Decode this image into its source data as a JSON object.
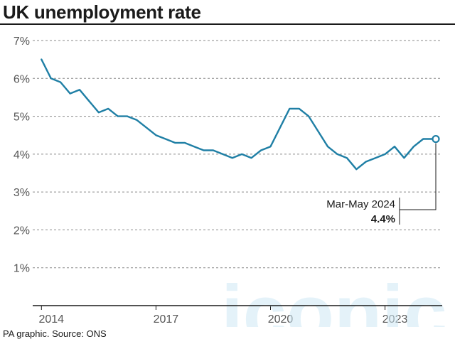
{
  "header": {
    "title": "UK unemployment rate"
  },
  "footer": {
    "source": "PA graphic. Source: ONS"
  },
  "watermark": {
    "text": "iconic"
  },
  "colors": {
    "line": "#1f7fa5",
    "axis": "#1a1a1a",
    "grid": "#8a8a8a",
    "watermark": "#cfe9f5"
  },
  "chart_data": {
    "type": "line",
    "title": "UK unemployment rate",
    "xlabel": "",
    "ylabel": "",
    "ylim": [
      0,
      7
    ],
    "xlim": [
      2013.92,
      2024.33
    ],
    "yticks": [
      1,
      2,
      3,
      4,
      5,
      6,
      7
    ],
    "ytick_labels": [
      "1%",
      "2%",
      "3%",
      "4%",
      "5%",
      "6%",
      "7%"
    ],
    "xticks": [
      2014,
      2017,
      2020,
      2023
    ],
    "xtick_labels": [
      "2014",
      "2017",
      "2020",
      "2023"
    ],
    "grid": true,
    "series": [
      {
        "x": [
          2014.0,
          2014.25,
          2014.5,
          2014.75,
          2015.0,
          2015.25,
          2015.5,
          2015.75,
          2016.0,
          2016.25,
          2016.5,
          2016.75,
          2017.0,
          2017.25,
          2017.5,
          2017.75,
          2018.0,
          2018.25,
          2018.5,
          2018.75,
          2019.0,
          2019.25,
          2019.5,
          2019.75,
          2020.0,
          2020.25,
          2020.5,
          2020.75,
          2021.0,
          2021.25,
          2021.5,
          2021.75,
          2022.0,
          2022.25,
          2022.5,
          2022.75,
          2023.0,
          2023.25,
          2023.5,
          2023.75,
          2024.0,
          2024.25
        ],
        "values": [
          6.5,
          6.0,
          5.9,
          5.6,
          5.7,
          5.4,
          5.1,
          5.2,
          5.0,
          5.0,
          4.9,
          4.7,
          4.5,
          4.4,
          4.3,
          4.3,
          4.2,
          4.1,
          4.1,
          4.0,
          3.9,
          4.0,
          3.9,
          4.1,
          4.2,
          4.7,
          5.2,
          5.2,
          5.0,
          4.6,
          4.2,
          4.0,
          3.9,
          3.6,
          3.8,
          3.9,
          4.0,
          4.2,
          3.9,
          4.2,
          4.4,
          4.4
        ]
      }
    ],
    "annotation": {
      "label": "Mar-May 2024",
      "value": "4.4%",
      "x": 2024.33,
      "y": 4.4
    }
  }
}
